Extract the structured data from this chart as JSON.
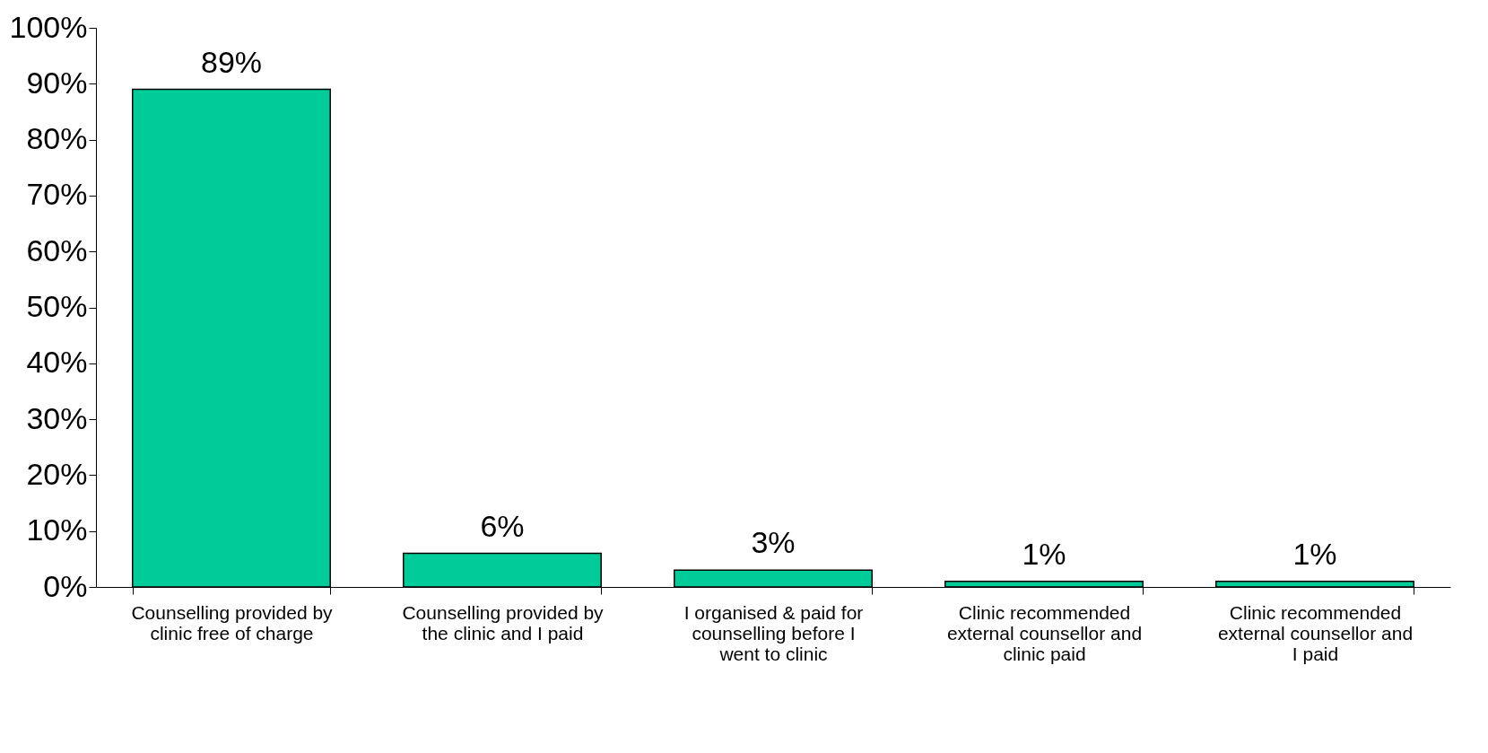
{
  "chart_data": {
    "type": "bar",
    "categories": [
      "Counselling provided by clinic free of charge",
      "Counselling provided by the clinic and I paid",
      "I organised & paid for counselling before I went to clinic",
      "Clinic recommended external counsellor and clinic paid",
      "Clinic recommended external counsellor and I paid"
    ],
    "values": [
      89,
      6,
      3,
      1,
      1
    ],
    "value_labels": [
      "89%",
      "6%",
      "3%",
      "1%",
      "1%"
    ],
    "color": "#00cc99",
    "ylim": [
      0,
      100
    ],
    "yticks": [
      {
        "value": 0,
        "label": "0%"
      },
      {
        "value": 10,
        "label": "10%"
      },
      {
        "value": 20,
        "label": "20%"
      },
      {
        "value": 30,
        "label": "30%"
      },
      {
        "value": 40,
        "label": "40%"
      },
      {
        "value": 50,
        "label": "50%"
      },
      {
        "value": 60,
        "label": "60%"
      },
      {
        "value": 70,
        "label": "70%"
      },
      {
        "value": 80,
        "label": "80%"
      },
      {
        "value": 90,
        "label": "90%"
      },
      {
        "value": 100,
        "label": "100%"
      }
    ],
    "grid": false
  }
}
